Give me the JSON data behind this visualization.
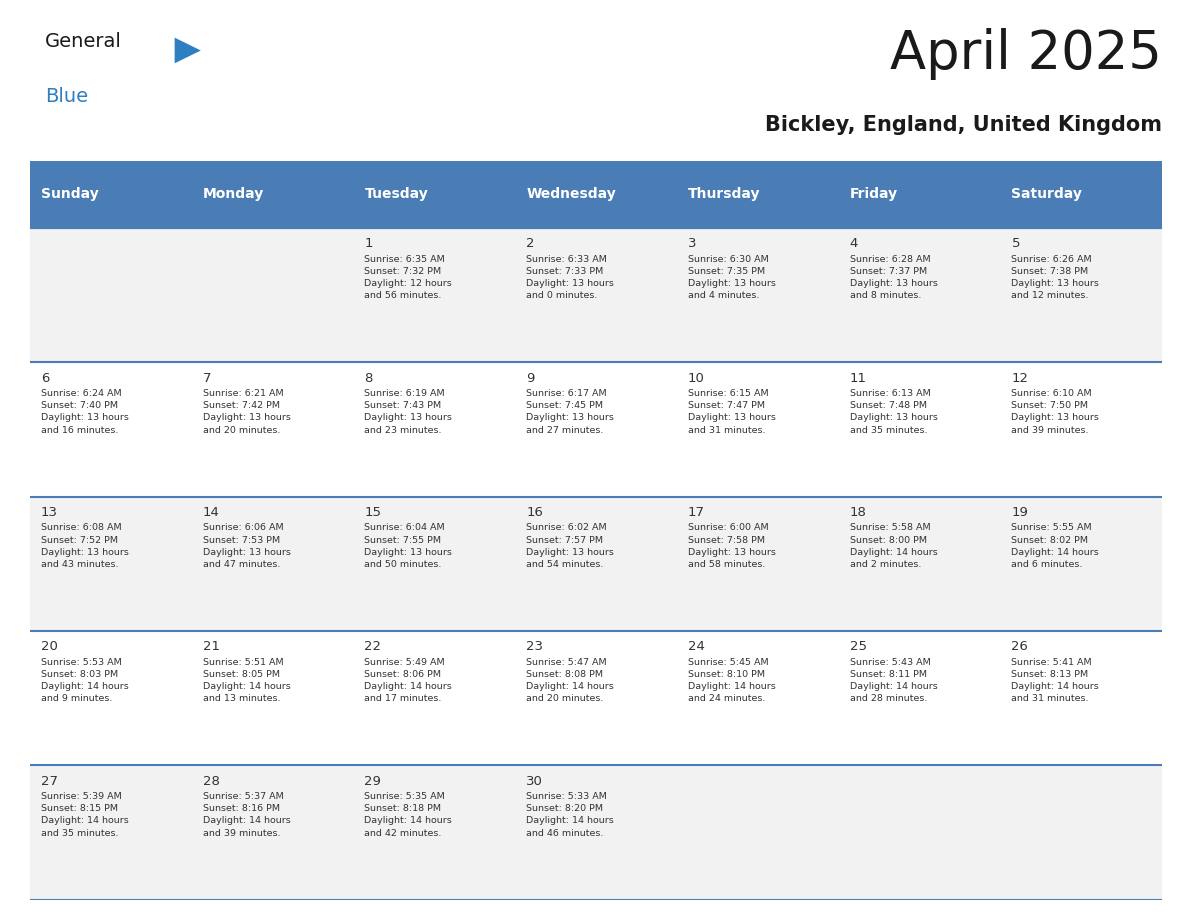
{
  "title": "April 2025",
  "subtitle": "Bickley, England, United Kingdom",
  "days_of_week": [
    "Sunday",
    "Monday",
    "Tuesday",
    "Wednesday",
    "Thursday",
    "Friday",
    "Saturday"
  ],
  "header_bg": "#4A7DB5",
  "header_text_color": "#FFFFFF",
  "cell_bg_white": "#FFFFFF",
  "cell_bg_gray": "#F2F2F2",
  "row_divider_color": "#4A7DB5",
  "day_number_color": "#333333",
  "cell_text_color": "#333333",
  "title_color": "#1A1A1A",
  "subtitle_color": "#1A1A1A",
  "logo_general_color": "#1A1A1A",
  "logo_blue_color": "#2E7EC2",
  "logo_triangle_color": "#2E7EC2",
  "calendar_data": [
    [
      {
        "day": null,
        "text": ""
      },
      {
        "day": null,
        "text": ""
      },
      {
        "day": 1,
        "text": "Sunrise: 6:35 AM\nSunset: 7:32 PM\nDaylight: 12 hours\nand 56 minutes."
      },
      {
        "day": 2,
        "text": "Sunrise: 6:33 AM\nSunset: 7:33 PM\nDaylight: 13 hours\nand 0 minutes."
      },
      {
        "day": 3,
        "text": "Sunrise: 6:30 AM\nSunset: 7:35 PM\nDaylight: 13 hours\nand 4 minutes."
      },
      {
        "day": 4,
        "text": "Sunrise: 6:28 AM\nSunset: 7:37 PM\nDaylight: 13 hours\nand 8 minutes."
      },
      {
        "day": 5,
        "text": "Sunrise: 6:26 AM\nSunset: 7:38 PM\nDaylight: 13 hours\nand 12 minutes."
      }
    ],
    [
      {
        "day": 6,
        "text": "Sunrise: 6:24 AM\nSunset: 7:40 PM\nDaylight: 13 hours\nand 16 minutes."
      },
      {
        "day": 7,
        "text": "Sunrise: 6:21 AM\nSunset: 7:42 PM\nDaylight: 13 hours\nand 20 minutes."
      },
      {
        "day": 8,
        "text": "Sunrise: 6:19 AM\nSunset: 7:43 PM\nDaylight: 13 hours\nand 23 minutes."
      },
      {
        "day": 9,
        "text": "Sunrise: 6:17 AM\nSunset: 7:45 PM\nDaylight: 13 hours\nand 27 minutes."
      },
      {
        "day": 10,
        "text": "Sunrise: 6:15 AM\nSunset: 7:47 PM\nDaylight: 13 hours\nand 31 minutes."
      },
      {
        "day": 11,
        "text": "Sunrise: 6:13 AM\nSunset: 7:48 PM\nDaylight: 13 hours\nand 35 minutes."
      },
      {
        "day": 12,
        "text": "Sunrise: 6:10 AM\nSunset: 7:50 PM\nDaylight: 13 hours\nand 39 minutes."
      }
    ],
    [
      {
        "day": 13,
        "text": "Sunrise: 6:08 AM\nSunset: 7:52 PM\nDaylight: 13 hours\nand 43 minutes."
      },
      {
        "day": 14,
        "text": "Sunrise: 6:06 AM\nSunset: 7:53 PM\nDaylight: 13 hours\nand 47 minutes."
      },
      {
        "day": 15,
        "text": "Sunrise: 6:04 AM\nSunset: 7:55 PM\nDaylight: 13 hours\nand 50 minutes."
      },
      {
        "day": 16,
        "text": "Sunrise: 6:02 AM\nSunset: 7:57 PM\nDaylight: 13 hours\nand 54 minutes."
      },
      {
        "day": 17,
        "text": "Sunrise: 6:00 AM\nSunset: 7:58 PM\nDaylight: 13 hours\nand 58 minutes."
      },
      {
        "day": 18,
        "text": "Sunrise: 5:58 AM\nSunset: 8:00 PM\nDaylight: 14 hours\nand 2 minutes."
      },
      {
        "day": 19,
        "text": "Sunrise: 5:55 AM\nSunset: 8:02 PM\nDaylight: 14 hours\nand 6 minutes."
      }
    ],
    [
      {
        "day": 20,
        "text": "Sunrise: 5:53 AM\nSunset: 8:03 PM\nDaylight: 14 hours\nand 9 minutes."
      },
      {
        "day": 21,
        "text": "Sunrise: 5:51 AM\nSunset: 8:05 PM\nDaylight: 14 hours\nand 13 minutes."
      },
      {
        "day": 22,
        "text": "Sunrise: 5:49 AM\nSunset: 8:06 PM\nDaylight: 14 hours\nand 17 minutes."
      },
      {
        "day": 23,
        "text": "Sunrise: 5:47 AM\nSunset: 8:08 PM\nDaylight: 14 hours\nand 20 minutes."
      },
      {
        "day": 24,
        "text": "Sunrise: 5:45 AM\nSunset: 8:10 PM\nDaylight: 14 hours\nand 24 minutes."
      },
      {
        "day": 25,
        "text": "Sunrise: 5:43 AM\nSunset: 8:11 PM\nDaylight: 14 hours\nand 28 minutes."
      },
      {
        "day": 26,
        "text": "Sunrise: 5:41 AM\nSunset: 8:13 PM\nDaylight: 14 hours\nand 31 minutes."
      }
    ],
    [
      {
        "day": 27,
        "text": "Sunrise: 5:39 AM\nSunset: 8:15 PM\nDaylight: 14 hours\nand 35 minutes."
      },
      {
        "day": 28,
        "text": "Sunrise: 5:37 AM\nSunset: 8:16 PM\nDaylight: 14 hours\nand 39 minutes."
      },
      {
        "day": 29,
        "text": "Sunrise: 5:35 AM\nSunset: 8:18 PM\nDaylight: 14 hours\nand 42 minutes."
      },
      {
        "day": 30,
        "text": "Sunrise: 5:33 AM\nSunset: 8:20 PM\nDaylight: 14 hours\nand 46 minutes."
      },
      {
        "day": null,
        "text": ""
      },
      {
        "day": null,
        "text": ""
      },
      {
        "day": null,
        "text": ""
      }
    ]
  ]
}
